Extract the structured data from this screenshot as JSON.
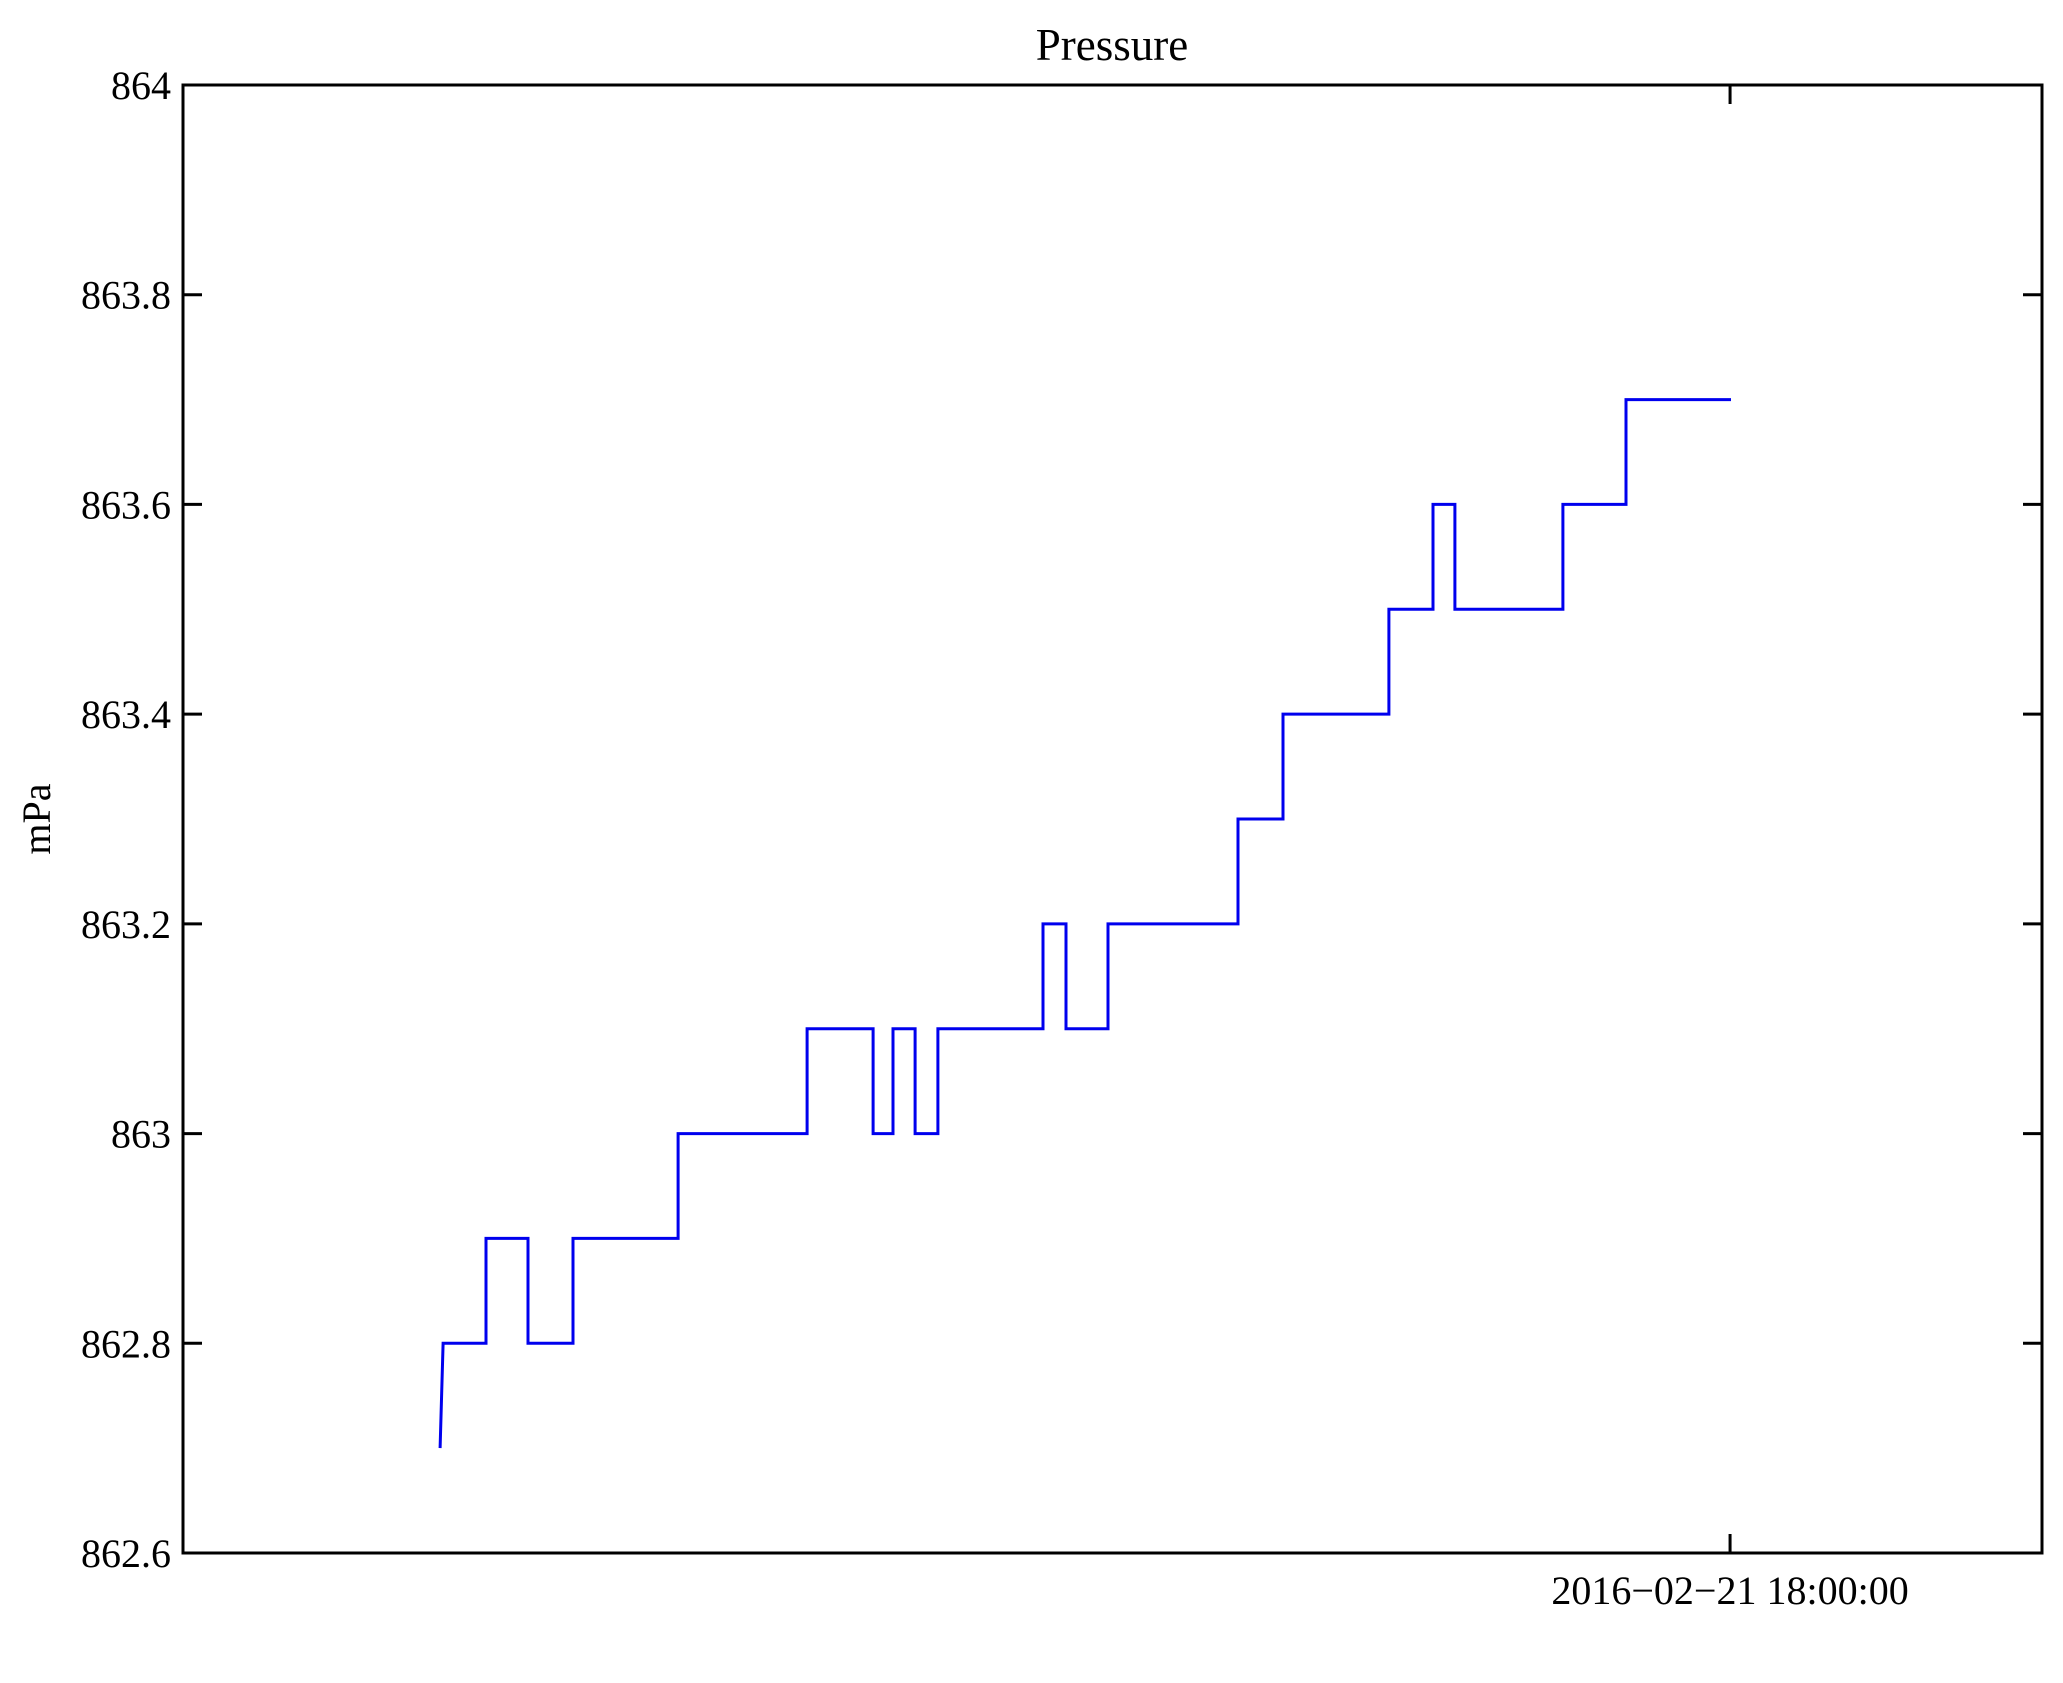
{
  "chart_data": {
    "type": "line",
    "title": "Pressure",
    "ylabel": "mPa",
    "xlabel": "",
    "ylim": [
      862.6,
      864
    ],
    "grid": false,
    "legend": "none",
    "line_color": "#0000ee",
    "axis_color": "#000000",
    "background_color": "#ffffff",
    "yticks": [
      {
        "value": 864.0,
        "label": "864"
      },
      {
        "value": 863.8,
        "label": "863.8"
      },
      {
        "value": 863.6,
        "label": "863.6"
      },
      {
        "value": 863.4,
        "label": "863.4"
      },
      {
        "value": 863.2,
        "label": "863.2"
      },
      {
        "value": 863.0,
        "label": "863"
      },
      {
        "value": 862.8,
        "label": "862.8"
      },
      {
        "value": 862.6,
        "label": "862.6"
      }
    ],
    "xtick": {
      "label": "2016−02−21 18:00:00",
      "fraction": 0.8322
    },
    "series_name": "Pressure",
    "points_format": "[fraction_of_x_axis, mPa]",
    "points": [
      [
        0.1383,
        862.7
      ],
      [
        0.1399,
        862.8
      ],
      [
        0.163,
        862.8
      ],
      [
        0.163,
        862.9
      ],
      [
        0.1856,
        862.9
      ],
      [
        0.1856,
        862.8
      ],
      [
        0.2098,
        862.8
      ],
      [
        0.2098,
        862.9
      ],
      [
        0.2663,
        862.9
      ],
      [
        0.2663,
        863.0
      ],
      [
        0.3357,
        863.0
      ],
      [
        0.3357,
        863.1
      ],
      [
        0.3712,
        863.1
      ],
      [
        0.3712,
        863.0
      ],
      [
        0.3819,
        863.0
      ],
      [
        0.3819,
        863.1
      ],
      [
        0.3938,
        863.1
      ],
      [
        0.3938,
        863.0
      ],
      [
        0.4061,
        863.0
      ],
      [
        0.4061,
        863.1
      ],
      [
        0.4626,
        863.1
      ],
      [
        0.4626,
        863.2
      ],
      [
        0.475,
        863.2
      ],
      [
        0.475,
        863.1
      ],
      [
        0.4976,
        863.1
      ],
      [
        0.4976,
        863.2
      ],
      [
        0.5675,
        863.2
      ],
      [
        0.5675,
        863.3
      ],
      [
        0.5917,
        863.3
      ],
      [
        0.5917,
        863.4
      ],
      [
        0.6487,
        863.4
      ],
      [
        0.6487,
        863.5
      ],
      [
        0.6724,
        863.5
      ],
      [
        0.6724,
        863.6
      ],
      [
        0.6842,
        863.6
      ],
      [
        0.6842,
        863.5
      ],
      [
        0.7423,
        863.5
      ],
      [
        0.7423,
        863.6
      ],
      [
        0.7762,
        863.6
      ],
      [
        0.7762,
        863.7
      ],
      [
        0.8327,
        863.7
      ]
    ]
  }
}
